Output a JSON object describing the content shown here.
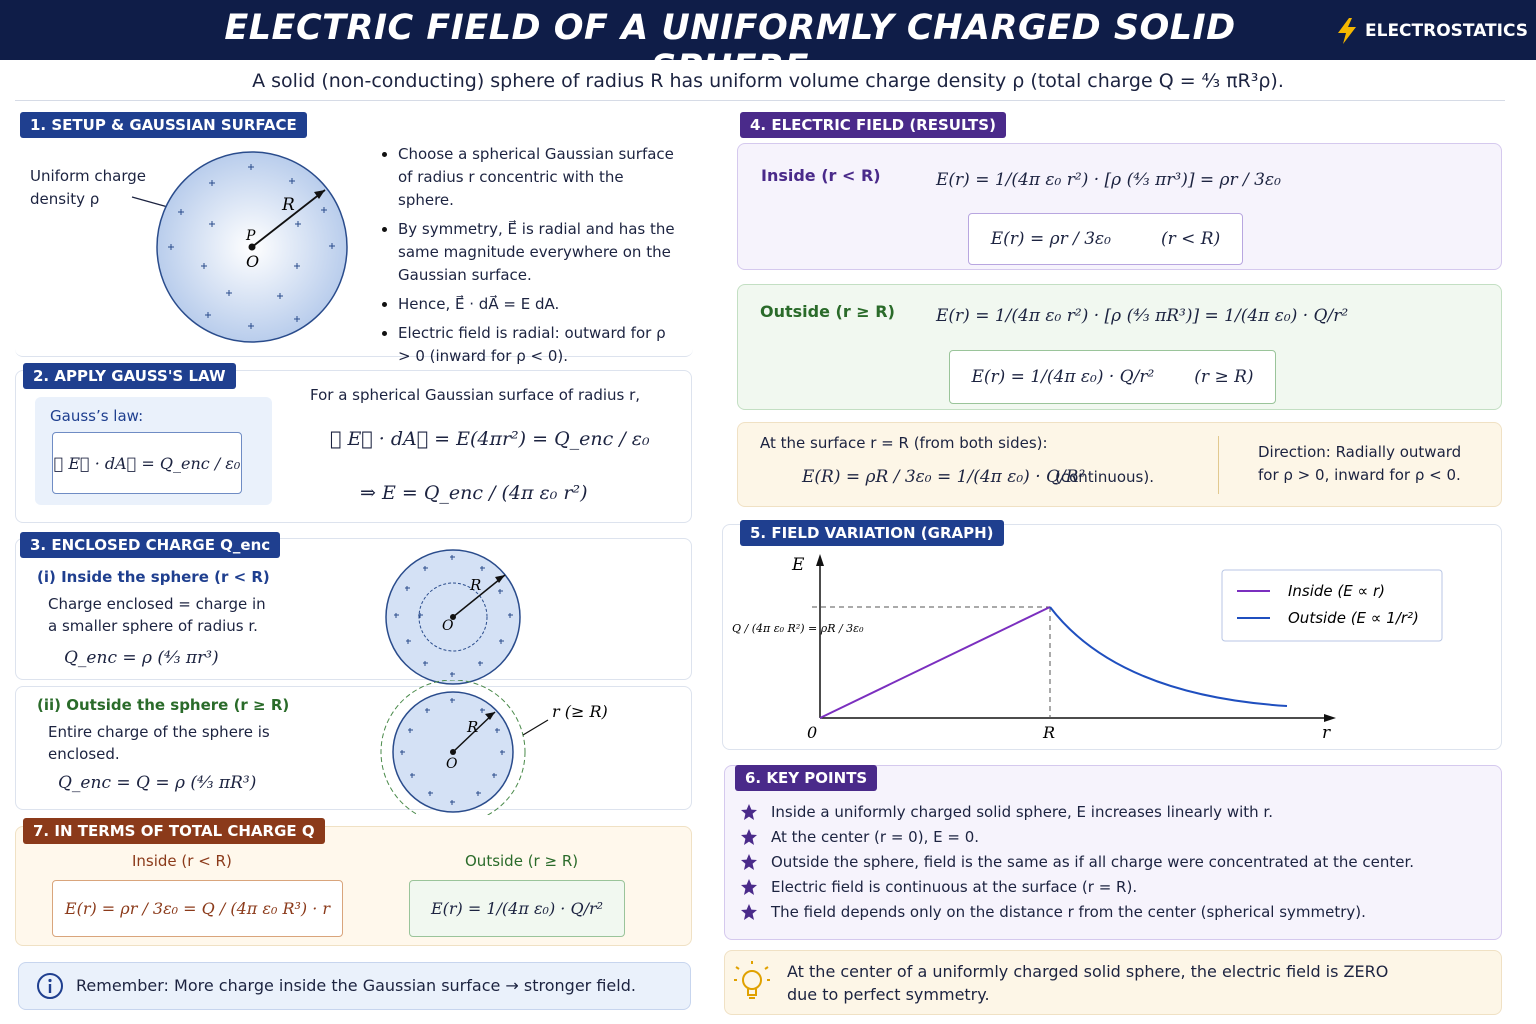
{
  "header": {
    "title": "ELECTRIC FIELD OF A UNIFORMLY CHARGED SOLID SPHERE",
    "tag": "ELECTROSTATICS"
  },
  "intro": "A solid (non-conducting) sphere of radius R has uniform volume charge density ρ (total charge Q = ⁴⁄₃ πR³ρ).",
  "setup": {
    "title": "1. SETUP & GAUSSIAN SURFACE",
    "label": "Uniform charge density ρ",
    "radius_label": "R",
    "point_label": "P",
    "center_label": "O",
    "bullets": [
      "Choose a spherical Gaussian surface of radius r concentric with the sphere.",
      "By symmetry, E⃗ is radial and has the same magnitude everywhere on the Gaussian surface.",
      "Hence, E⃗ · dA⃗ = E dA.",
      "Electric field is radial: outward for ρ > 0 (inward for ρ < 0)."
    ]
  },
  "gauss": {
    "title": "2. APPLY GAUSS'S LAW",
    "box_label": "Gauss’s law:",
    "law": "∮ E⃗ · dA⃗ = Q_enc / ε₀",
    "intro": "For a spherical Gaussian surface of radius r,",
    "eq1": "∮ E⃗ · dA⃗ = E(4πr²) = Q_enc / ε₀",
    "eq2": "⇒ E = Q_enc / (4π ε₀ r²)"
  },
  "enclosed": {
    "title": "3. ENCLOSED CHARGE Q_enc",
    "inside": {
      "label": "(i) Inside the sphere (r < R)",
      "text": "Charge enclosed = charge in a smaller sphere of radius r.",
      "eq": "Q_enc = ρ (⁴⁄₃ πr³)",
      "radius_label": "R",
      "center_label": "O"
    },
    "outside": {
      "label": "(ii) Outside the sphere (r ≥ R)",
      "text": "Entire charge of the sphere is enclosed.",
      "eq": "Q_enc = Q = ρ (⁴⁄₃ πR³)",
      "radius_label": "R",
      "center_label": "O",
      "gauss_label": "r (≥ R)"
    }
  },
  "total": {
    "title": "7. IN TERMS OF TOTAL CHARGE Q",
    "inside_label": "Inside (r < R)",
    "inside_eq": "E(r) = ρr / 3ε₀ = Q / (4π ε₀ R³) · r",
    "outside_label": "Outside (r ≥ R)",
    "outside_eq": "E(r) = 1/(4π ε₀) · Q/r²"
  },
  "note": "Remember: More charge inside the Gaussian surface → stronger field.",
  "results": {
    "title": "4. ELECTRIC FIELD (RESULTS)",
    "inside": {
      "label": "Inside (r < R)",
      "eq": "E(r) = 1/(4π ε₀ r²) · [ρ (⁴⁄₃ πr³)] = ρr / 3ε₀",
      "boxed": "E(r) = ρr / 3ε₀",
      "condition": "(r < R)"
    },
    "outside": {
      "label": "Outside (r ≥ R)",
      "eq": "E(r) = 1/(4π ε₀ r²) · [ρ (⁴⁄₃ πR³)] = 1/(4π ε₀) · Q/r²",
      "boxed": "E(r) = 1/(4π ε₀) · Q/r²",
      "condition": "(r ≥ R)"
    },
    "surface": {
      "text": "At the surface r = R (from both sides):",
      "eq": "E(R) = ρR / 3ε₀ = 1/(4π ε₀) · Q/R²",
      "note": "(continuous).",
      "direction": "Direction: Radially outward for ρ > 0, inward for ρ < 0."
    }
  },
  "graph": {
    "title": "5. FIELD VARIATION (GRAPH)",
    "y_label": "E",
    "x_label": "r",
    "origin_label": "0",
    "r_label": "R",
    "peak_label": "Q / (4π ε₀ R²) = ρR / 3ε₀",
    "legend": [
      "Inside (E ∝ r)",
      "Outside (E ∝ 1/r²)"
    ]
  },
  "key_points": {
    "title": "6. KEY POINTS",
    "items": [
      "Inside a uniformly charged solid sphere, E increases linearly with r.",
      "At the center (r = 0), E = 0.",
      "Outside the sphere, field is the same as if all charge were concentrated at the center.",
      "Electric field is continuous at the surface (r = R).",
      "The field depends only on the distance r from the center (spherical symmetry)."
    ]
  },
  "highlight": "At the center of a uniformly charged solid sphere, the electric field is ZERO due to perfect symmetry."
}
